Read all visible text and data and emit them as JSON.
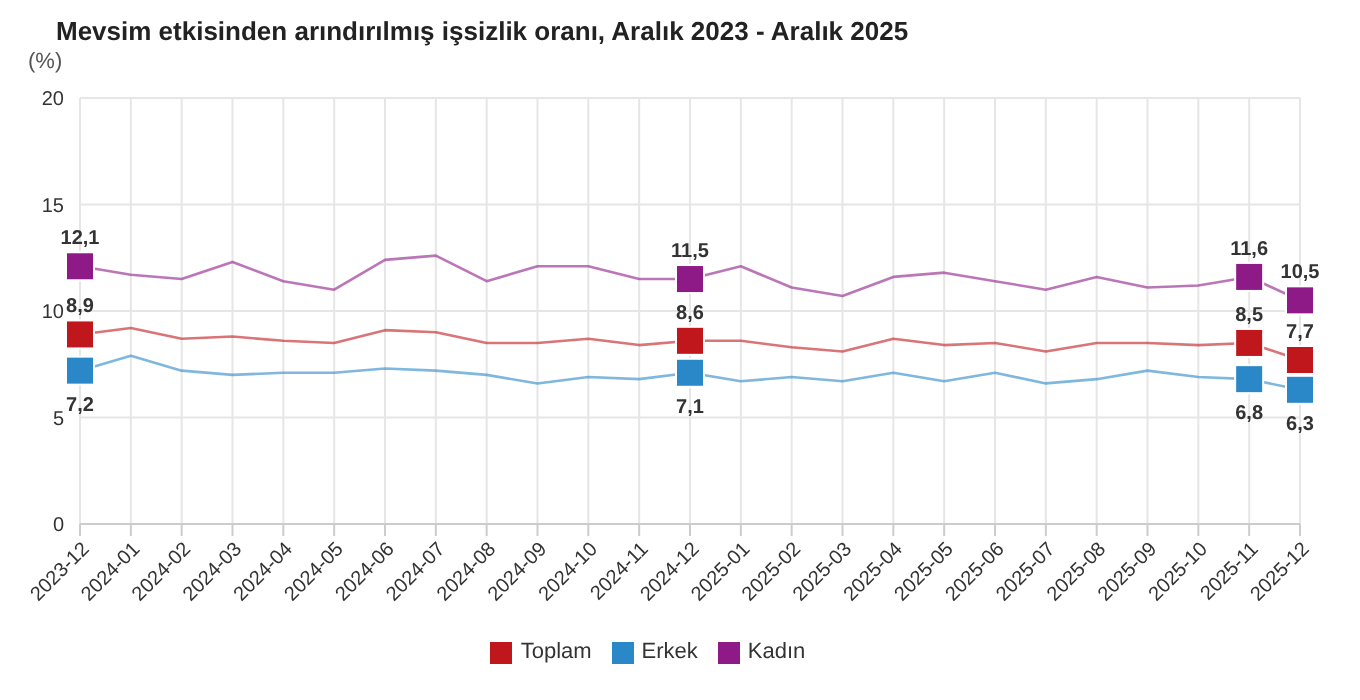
{
  "chart_data": {
    "type": "line",
    "title": "Mevsim etkisinden arındırılmış işsizlik oranı, Aralık 2023 - Aralık 2025",
    "ylabel": "(%)",
    "categories": [
      "2023-12",
      "2024-01",
      "2024-02",
      "2024-03",
      "2024-04",
      "2024-05",
      "2024-06",
      "2024-07",
      "2024-08",
      "2024-09",
      "2024-10",
      "2024-11",
      "2024-12",
      "2025-01",
      "2025-02",
      "2025-03",
      "2025-04",
      "2025-05",
      "2025-06",
      "2025-07",
      "2025-08",
      "2025-09",
      "2025-10",
      "2025-11",
      "2025-12"
    ],
    "series": [
      {
        "name": "Toplam",
        "color": "#c0171c",
        "values": [
          8.9,
          9.2,
          8.7,
          8.8,
          8.6,
          8.5,
          9.1,
          9.0,
          8.5,
          8.5,
          8.7,
          8.4,
          8.6,
          8.6,
          8.3,
          8.1,
          8.7,
          8.4,
          8.5,
          8.1,
          8.5,
          8.5,
          8.4,
          8.5,
          7.7
        ],
        "value_labels": [
          "8,9",
          null,
          null,
          null,
          null,
          null,
          null,
          null,
          null,
          null,
          null,
          null,
          "8,6",
          null,
          null,
          null,
          null,
          null,
          null,
          null,
          null,
          null,
          null,
          "8,5",
          "7,7"
        ]
      },
      {
        "name": "Erkek",
        "color": "#2a87c8",
        "values": [
          7.2,
          7.9,
          7.2,
          7.0,
          7.1,
          7.1,
          7.3,
          7.2,
          7.0,
          6.6,
          6.9,
          6.8,
          7.1,
          6.7,
          6.9,
          6.7,
          7.1,
          6.7,
          7.1,
          6.6,
          6.8,
          7.2,
          6.9,
          6.8,
          6.3
        ],
        "value_labels": [
          "7,2",
          null,
          null,
          null,
          null,
          null,
          null,
          null,
          null,
          null,
          null,
          null,
          "7,1",
          null,
          null,
          null,
          null,
          null,
          null,
          null,
          null,
          null,
          null,
          "6,8",
          "6,3"
        ]
      },
      {
        "name": "Kadın",
        "color": "#8e1a87",
        "values": [
          12.1,
          11.7,
          11.5,
          12.3,
          11.4,
          11.0,
          12.4,
          12.6,
          11.4,
          12.1,
          12.1,
          11.5,
          11.5,
          12.1,
          11.1,
          10.7,
          11.6,
          11.8,
          11.4,
          11.0,
          11.6,
          11.1,
          11.2,
          11.6,
          10.5
        ],
        "value_labels": [
          "12,1",
          null,
          null,
          null,
          null,
          null,
          null,
          null,
          null,
          null,
          null,
          null,
          "11,5",
          null,
          null,
          null,
          null,
          null,
          null,
          null,
          null,
          null,
          null,
          "11,6",
          "10,5"
        ]
      }
    ],
    "ylim": [
      0,
      20
    ],
    "yticks": [
      0,
      5,
      10,
      15,
      20
    ],
    "grid": true,
    "legend": "bottom",
    "line_style": "solid"
  }
}
